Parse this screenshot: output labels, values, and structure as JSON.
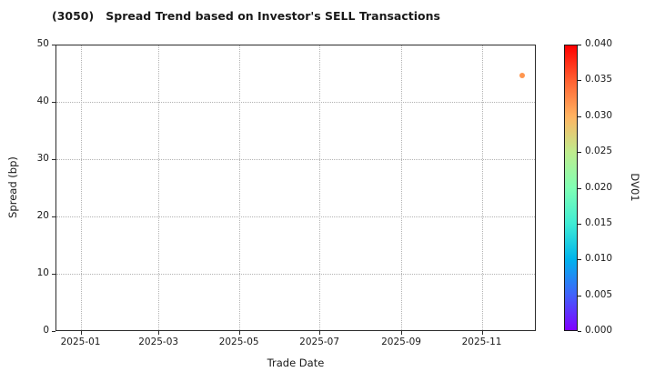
{
  "page": {
    "background": "#ffffff"
  },
  "chart_data": {
    "type": "scatter",
    "title": "(3050)   Spread Trend based on Investor's SELL Transactions",
    "xlabel": "Trade Date",
    "ylabel": "Spread (bp)",
    "xlim": [
      "2024-12-13",
      "2025-12-12"
    ],
    "ylim": [
      0,
      50
    ],
    "grid": true,
    "grid_style": "dotted",
    "x_tick_labels": [
      "2025-01",
      "2025-03",
      "2025-05",
      "2025-07",
      "2025-09",
      "2025-11"
    ],
    "y_tick_values": [
      0,
      10,
      20,
      30,
      40,
      50
    ],
    "points": [
      {
        "trade_date": "2025-12-01",
        "spread_bp": 44.7,
        "dv01": 0.032,
        "color": "#ff964f"
      }
    ],
    "colorbar": {
      "label": "DV01",
      "min": 0.0,
      "max": 0.04,
      "tick_labels": [
        "0.000",
        "0.005",
        "0.010",
        "0.015",
        "0.020",
        "0.025",
        "0.030",
        "0.035",
        "0.040"
      ],
      "colormap": "rainbow",
      "gradient_stops": [
        "#8000ff",
        "#4062fa",
        "#00b4ec",
        "#40ecd4",
        "#80ffb4",
        "#bfec8e",
        "#ffb462",
        "#ff6232",
        "#ff0000"
      ]
    }
  }
}
